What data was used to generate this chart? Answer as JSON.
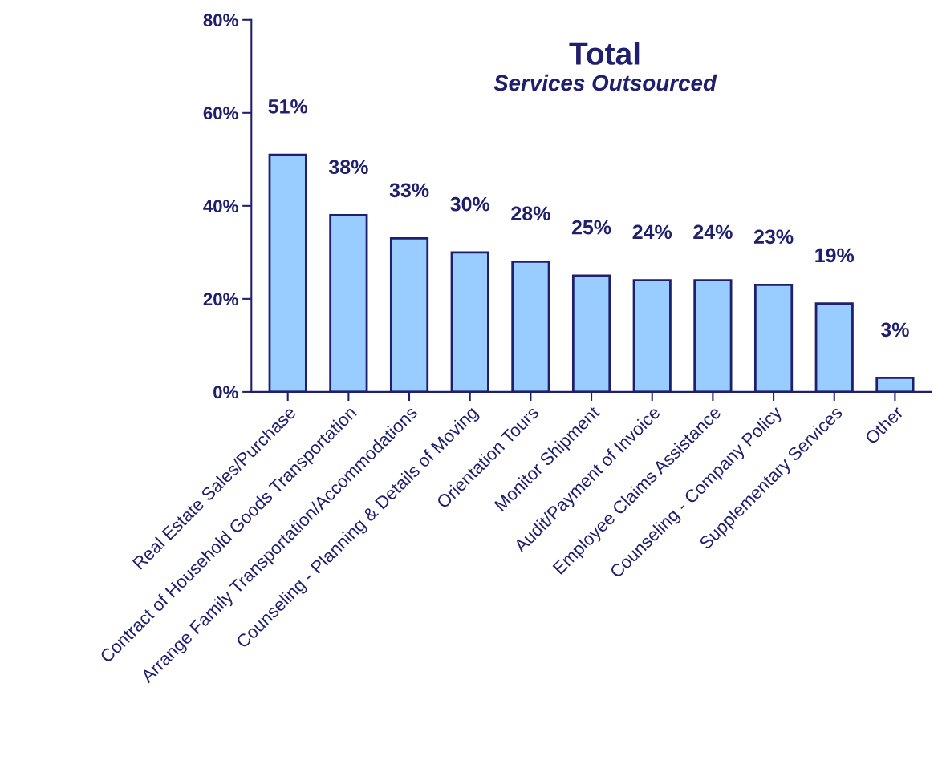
{
  "chart_data": {
    "type": "bar",
    "title": "Total",
    "subtitle": "Services Outsourced",
    "categories": [
      "Real Estate Sales/Purchase",
      "Contract of Household Goods Transportation",
      "Arrange Family Transportation/Accommodations",
      "Counseling - Planning & Details of Moving",
      "Orientation Tours",
      "Monitor Shipment",
      "Audit/Payment of Invoice",
      "Employee Claims Assistance",
      "Counseling - Company Policy",
      "Supplementary Services",
      "Other"
    ],
    "values": [
      51,
      38,
      33,
      30,
      28,
      25,
      24,
      24,
      23,
      19,
      3
    ],
    "value_labels": [
      "51%",
      "38%",
      "33%",
      "30%",
      "28%",
      "25%",
      "24%",
      "24%",
      "23%",
      "19%",
      "3%"
    ],
    "color": "#99ccff",
    "ylim": [
      0,
      80
    ],
    "yticks": [
      {
        "value": 0,
        "label": "0%"
      },
      {
        "value": 20,
        "label": "20%"
      },
      {
        "value": 40,
        "label": "40%"
      },
      {
        "value": 60,
        "label": "60%"
      },
      {
        "value": 80,
        "label": "80%"
      }
    ],
    "grid": false
  }
}
